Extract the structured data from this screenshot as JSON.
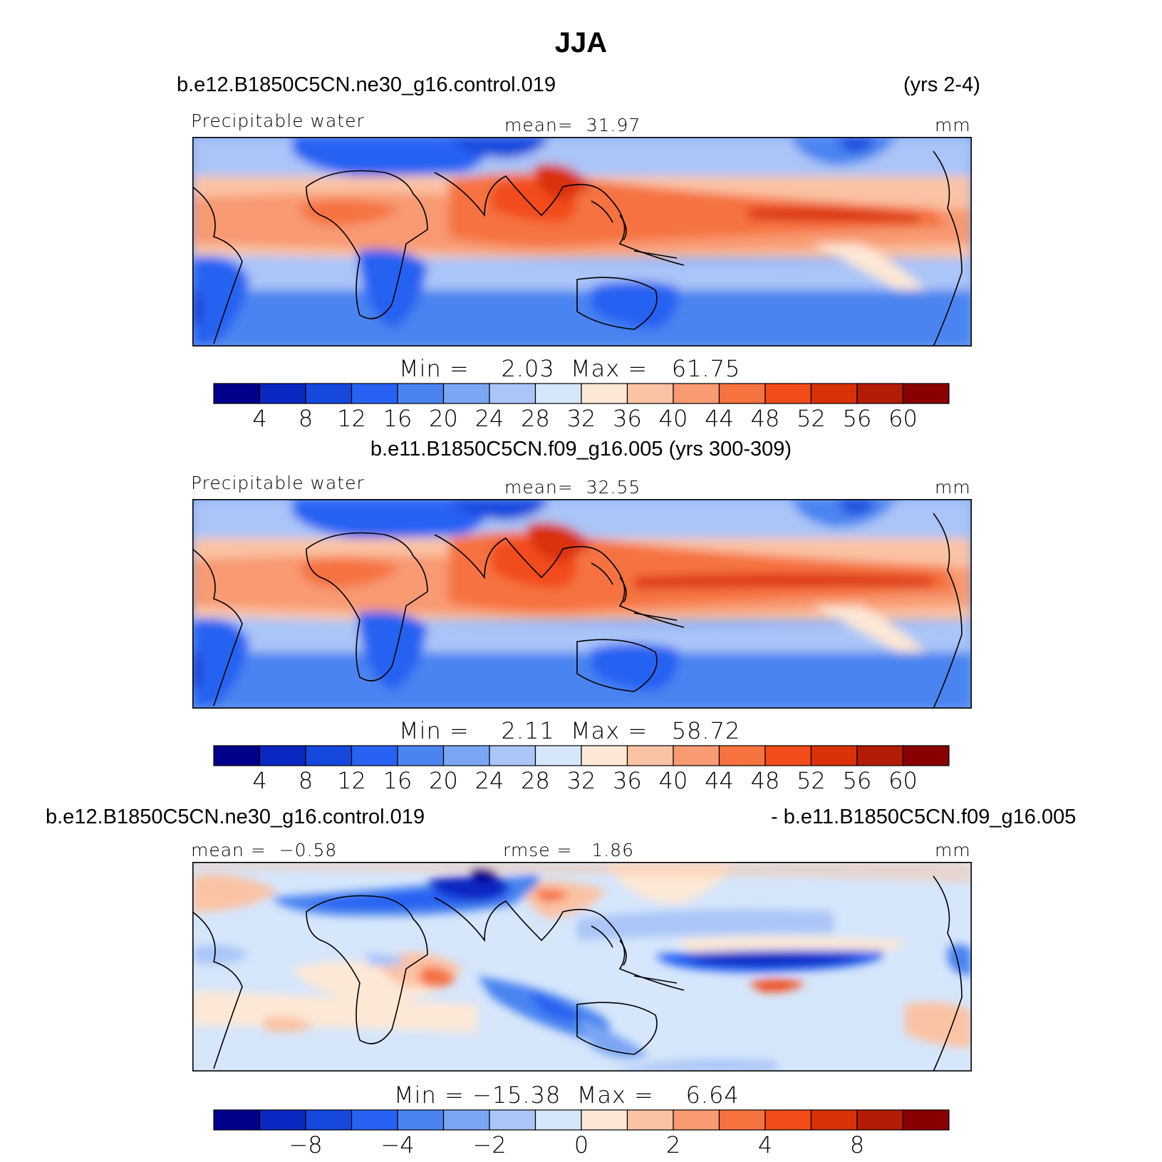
{
  "page_title": "JJA",
  "palette": [
    "#00008a",
    "#0a27c2",
    "#1548dd",
    "#2862f2",
    "#4a84f0",
    "#7ba6f3",
    "#aac5f7",
    "#d6e6fb",
    "#fde8d6",
    "#fac3a4",
    "#f89a72",
    "#f6723f",
    "#f24c1a",
    "#d93108",
    "#b31c05",
    "#8a0000"
  ],
  "panels": [
    {
      "header_left": "b.e12.B1850C5CN.ne30_g16.control.019",
      "header_right": "(yrs 2-4)",
      "field": "Precipitable water",
      "stat_mid": "mean=  31.97",
      "units": "mm",
      "minmax": "Min =    2.03  Max =   61.75",
      "ticks": [
        "4",
        "8",
        "12",
        "16",
        "20",
        "24",
        "28",
        "32",
        "36",
        "40",
        "44",
        "48",
        "52",
        "56",
        "60"
      ]
    },
    {
      "header_center": "b.e11.B1850C5CN.f09_g16.005 (yrs 300-309)",
      "field": "Precipitable water",
      "stat_mid": "mean=  32.55",
      "units": "mm",
      "minmax": "Min =    2.11  Max =   58.72",
      "ticks": [
        "4",
        "8",
        "12",
        "16",
        "20",
        "24",
        "28",
        "32",
        "36",
        "40",
        "44",
        "48",
        "52",
        "56",
        "60"
      ]
    },
    {
      "header_left": "b.e12.B1850C5CN.ne30_g16.control.019",
      "header_right": "- b.e11.B1850C5CN.f09_g16.005",
      "stat_left": "mean =  −0.58",
      "stat_mid": "rmse =   1.86",
      "units": "mm",
      "minmax": "Min = −15.38  Max =    6.64",
      "ticks": [
        "−8",
        "−4",
        "−2",
        "0",
        "2",
        "4",
        "8"
      ]
    }
  ]
}
